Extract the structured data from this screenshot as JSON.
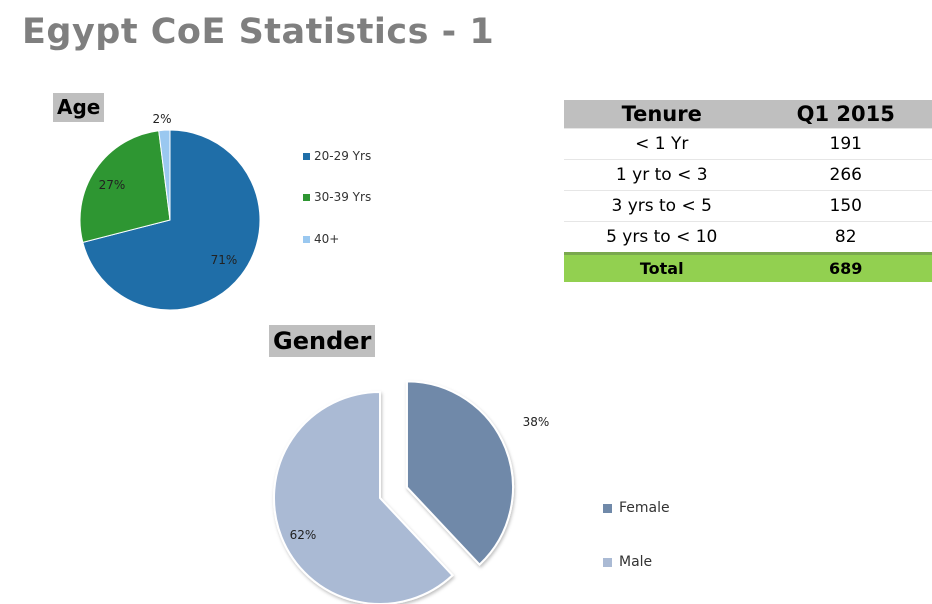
{
  "title": "Egypt CoE Statistics - 1",
  "age_label": "Age",
  "gender_label": "Gender",
  "chart_data": [
    {
      "type": "pie",
      "title": "Age",
      "categories": [
        "20-29 Yrs",
        "30-39 Yrs",
        "40+"
      ],
      "values": [
        71,
        27,
        2
      ],
      "value_labels": [
        "71%",
        "27%",
        "2%"
      ],
      "colors": [
        "#1f6ea8",
        "#2e9632",
        "#9ac8f0"
      ],
      "legend": "right"
    },
    {
      "type": "pie",
      "title": "Gender",
      "categories": [
        "Female",
        "Male"
      ],
      "values": [
        38,
        62
      ],
      "value_labels": [
        "38%",
        "62%"
      ],
      "colors": [
        "#7089a9",
        "#aabad4"
      ],
      "exploded": "Female",
      "legend": "right"
    },
    {
      "type": "table",
      "headers": [
        "Tenure",
        "Q1 2015"
      ],
      "rows": [
        [
          "< 1 Yr",
          "191"
        ],
        [
          "1 yr to < 3",
          "266"
        ],
        [
          "3 yrs to < 5",
          "150"
        ],
        [
          "5 yrs to < 10",
          "82"
        ]
      ],
      "total": [
        "Total",
        "689"
      ],
      "colors": {
        "header": "#bfbfbf",
        "total": "#92d050"
      }
    }
  ]
}
